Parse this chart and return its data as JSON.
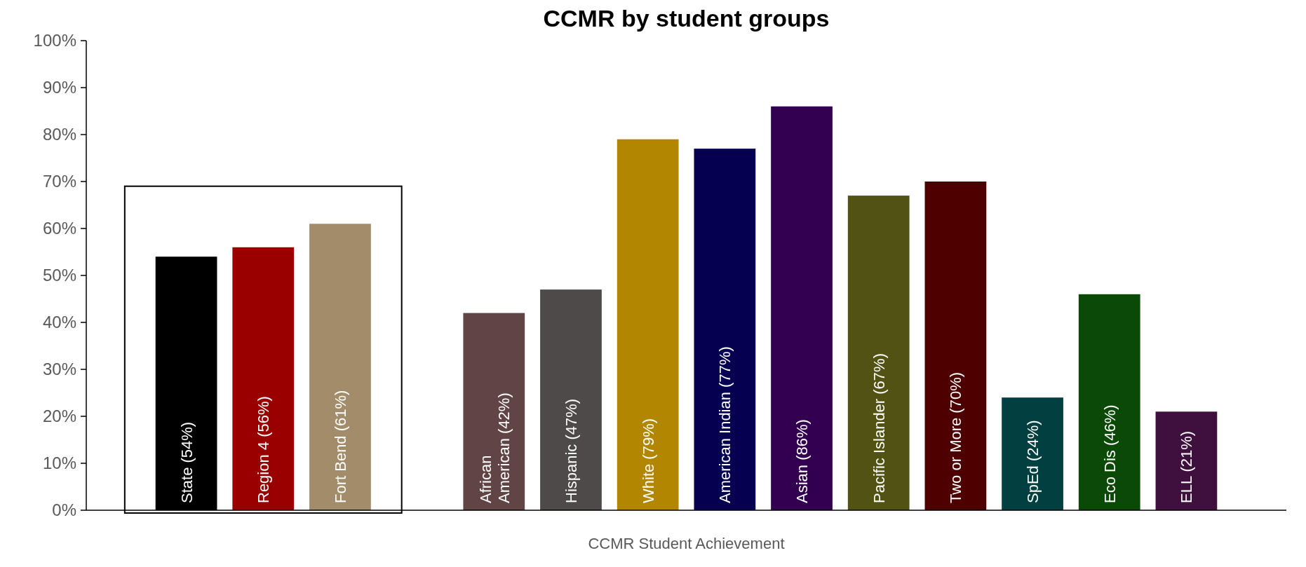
{
  "chart_data": {
    "type": "bar",
    "title": "CCMR by student groups",
    "xlabel": "CCMR Student Achievement",
    "categories": [
      "State (54%)",
      "Region 4 (56%)",
      "Fort Bend (61%)",
      null,
      "African American (42%)",
      "Hispanic (47%)",
      "White (79%)",
      "American Indian (77%)",
      "Asian (86%)",
      "Pacific Islander (67%)",
      "Two or More (70%)",
      "SpEd (24%)",
      "Eco Dis (46%)",
      "ELL (21%)"
    ],
    "values": [
      54,
      56,
      61,
      null,
      42,
      47,
      79,
      77,
      86,
      67,
      70,
      24,
      46,
      21
    ],
    "colors": [
      "#000000",
      "#990000",
      "#a28c6a",
      null,
      "#614545",
      "#4d4a49",
      "#b38600",
      "#060050",
      "#330050",
      "#525313",
      "#4e0000",
      "#004040",
      "#0a4a06",
      "#3f0f3e"
    ],
    "ylim": [
      0,
      100
    ],
    "yticks": [
      {
        "value": 0,
        "label": "0%"
      },
      {
        "value": 10,
        "label": "10%"
      },
      {
        "value": 20,
        "label": "20%"
      },
      {
        "value": 30,
        "label": "30%"
      },
      {
        "value": 40,
        "label": "40%"
      },
      {
        "value": 50,
        "label": "50%"
      },
      {
        "value": 60,
        "label": "60%"
      },
      {
        "value": 70,
        "label": "70%"
      },
      {
        "value": 80,
        "label": "80%"
      },
      {
        "value": 90,
        "label": "90%"
      },
      {
        "value": 100,
        "label": "100%"
      }
    ],
    "grid": false
  }
}
